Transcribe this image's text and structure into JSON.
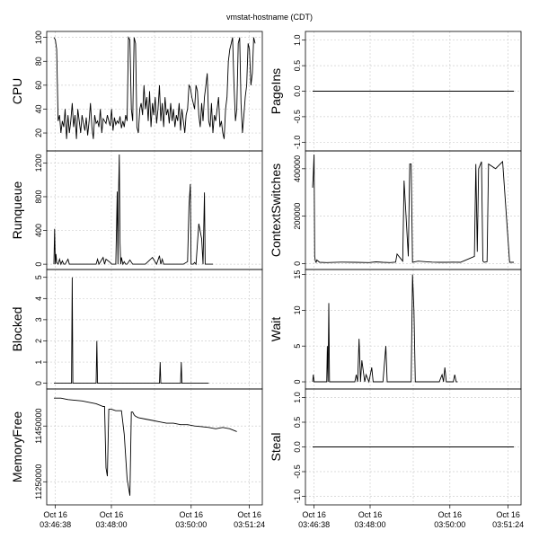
{
  "page_title": "vmstat-hostname (CDT)",
  "x_tick_labels": [
    {
      "day": "Oct 16",
      "time": "03:46:38"
    },
    {
      "day": "Oct 16",
      "time": "03:48:00"
    },
    {
      "day": "Oct 16",
      "time": "03:50:00"
    },
    {
      "day": "Oct 16",
      "time": "03:51:24"
    }
  ],
  "chart_data": [
    {
      "type": "line",
      "ylabel": "CPU",
      "ylim": [
        8,
        102
      ],
      "yticks": [
        20,
        40,
        60,
        80,
        100
      ],
      "grid": true,
      "x": [
        0,
        2,
        4,
        6,
        8,
        10,
        12,
        14,
        16,
        18,
        20,
        22,
        24,
        26,
        28,
        30,
        32,
        34,
        36,
        38,
        40,
        42,
        44,
        46,
        48,
        50,
        52,
        54,
        56,
        58,
        60,
        62,
        64,
        66,
        68,
        70,
        72,
        74,
        76,
        78,
        80,
        82,
        84,
        86,
        88,
        90,
        92,
        94,
        96,
        98,
        100,
        102,
        104,
        106,
        108,
        110,
        112,
        114,
        116,
        118,
        120,
        122,
        124,
        126,
        128,
        130,
        132,
        134,
        136,
        138,
        140,
        142,
        144,
        146,
        148,
        150,
        152,
        154,
        156,
        158,
        160,
        162,
        164,
        166,
        168,
        170,
        172,
        174,
        176,
        178,
        180,
        182,
        184,
        186,
        188,
        190,
        192,
        194,
        196,
        198,
        200,
        202,
        204,
        206,
        208,
        210,
        212,
        214,
        216,
        218,
        220,
        222,
        224,
        226,
        228,
        230,
        232,
        234,
        236,
        238,
        240,
        242,
        244,
        246,
        248,
        250,
        252,
        254,
        256,
        258,
        260,
        262,
        264,
        266,
        268,
        270,
        272,
        274,
        276,
        278,
        280,
        282,
        284,
        286
      ],
      "values": [
        100,
        98,
        90,
        30,
        35,
        20,
        30,
        25,
        40,
        15,
        35,
        20,
        30,
        45,
        25,
        35,
        15,
        40,
        30,
        20,
        35,
        28,
        22,
        33,
        18,
        30,
        45,
        25,
        15,
        35,
        28,
        30,
        25,
        40,
        20,
        32,
        30,
        28,
        35,
        30,
        26,
        40,
        22,
        33,
        27,
        30,
        28,
        34,
        24,
        30,
        25,
        35,
        30,
        100,
        98,
        40,
        30,
        100,
        95,
        25,
        20,
        40,
        45,
        35,
        60,
        40,
        50,
        30,
        55,
        25,
        45,
        35,
        50,
        28,
        40,
        60,
        30,
        45,
        25,
        50,
        35,
        40,
        28,
        45,
        30,
        40,
        25,
        35,
        30,
        45,
        22,
        40,
        30,
        20,
        35,
        40,
        60,
        58,
        50,
        45,
        40,
        60,
        55,
        35,
        25,
        45,
        30,
        50,
        60,
        70,
        30,
        25,
        45,
        20,
        35,
        30,
        40,
        50,
        25,
        30,
        20,
        15,
        40,
        50,
        80,
        90,
        95,
        100,
        60,
        30,
        40,
        95,
        100,
        45,
        20,
        35,
        50,
        60,
        95,
        90,
        60,
        70,
        100,
        95
      ],
      "labels": [
        "",
        "",
        "",
        "",
        "",
        ""
      ]
    },
    {
      "type": "line",
      "ylabel": "PageIns",
      "ylim": [
        -1.1,
        1.1
      ],
      "yticks": [
        -1.0,
        -0.5,
        0.0,
        0.5,
        1.0
      ],
      "grid": true,
      "x": [
        0,
        286
      ],
      "values": [
        0,
        0
      ]
    },
    {
      "type": "line",
      "ylabel": "Runqueue",
      "ylim": [
        -20,
        1300
      ],
      "yticks": [
        0,
        400,
        800,
        1200
      ],
      "grid": true,
      "x": [
        0,
        1,
        2,
        3,
        4,
        6,
        8,
        10,
        12,
        14,
        16,
        20,
        22,
        24,
        30,
        40,
        50,
        60,
        62,
        64,
        70,
        72,
        74,
        80,
        82,
        84,
        88,
        90,
        91,
        92,
        93,
        94,
        95,
        96,
        98,
        100,
        102,
        104,
        108,
        112,
        116,
        120,
        124,
        130,
        140,
        146,
        150,
        152,
        154,
        156,
        160,
        164,
        170,
        176,
        180,
        184,
        190,
        192,
        194,
        195,
        196,
        197,
        198,
        200,
        202,
        206,
        210,
        212,
        214,
        215,
        216,
        218,
        222,
        226
      ],
      "values": [
        0,
        420,
        0,
        120,
        20,
        0,
        60,
        0,
        40,
        0,
        0,
        60,
        0,
        0,
        0,
        0,
        0,
        0,
        60,
        0,
        80,
        0,
        60,
        20,
        0,
        0,
        0,
        860,
        0,
        900,
        1300,
        250,
        0,
        80,
        0,
        30,
        0,
        0,
        50,
        0,
        0,
        0,
        0,
        0,
        80,
        0,
        100,
        0,
        60,
        0,
        0,
        0,
        0,
        0,
        0,
        0,
        30,
        700,
        950,
        0,
        0,
        0,
        0,
        20,
        0,
        480,
        300,
        0,
        850,
        0,
        0,
        0,
        0,
        0
      ],
      "labels": []
    },
    {
      "type": "line",
      "ylabel": "ContextSwitches",
      "ylim": [
        -10000,
        460000
      ],
      "yticks": [
        0,
        200000,
        400000
      ],
      "grid": true,
      "x": [
        0,
        1,
        2,
        3,
        4,
        5,
        6,
        10,
        20,
        40,
        60,
        80,
        90,
        100,
        110,
        118,
        120,
        128,
        130,
        136,
        138,
        140,
        142,
        150,
        160,
        170,
        180,
        190,
        200,
        210,
        230,
        232,
        234,
        236,
        240,
        242,
        244,
        248,
        250,
        260,
        270,
        280,
        286
      ],
      "values": [
        320000,
        380000,
        460000,
        30000,
        10000,
        5000,
        15000,
        5000,
        4000,
        6000,
        5000,
        4000,
        7000,
        5000,
        4000,
        6000,
        40000,
        10000,
        350000,
        30000,
        420000,
        420000,
        5000,
        10000,
        8000,
        6000,
        5000,
        5000,
        6000,
        5000,
        30000,
        420000,
        50000,
        400000,
        430000,
        10000,
        5000,
        8000,
        420000,
        400000,
        430000,
        5000,
        5000
      ]
    },
    {
      "type": "line",
      "ylabel": "Blocked",
      "ylim": [
        -0.1,
        5.2
      ],
      "yticks": [
        0,
        1,
        2,
        3,
        4,
        5
      ],
      "grid": true,
      "x": [
        0,
        25,
        26,
        27,
        60,
        61,
        62,
        150,
        151,
        152,
        180,
        181,
        182,
        220
      ],
      "values": [
        0,
        0,
        5,
        0,
        0,
        2,
        0,
        0,
        1,
        0,
        0,
        1,
        0,
        0
      ]
    },
    {
      "type": "line",
      "ylabel": "Wait",
      "ylim": [
        -0.5,
        15.2
      ],
      "yticks": [
        0,
        5,
        10,
        15
      ],
      "grid": true,
      "x": [
        0,
        1,
        2,
        3,
        20,
        21,
        22,
        23,
        24,
        25,
        60,
        62,
        64,
        66,
        68,
        70,
        74,
        76,
        80,
        84,
        86,
        100,
        104,
        106,
        120,
        140,
        142,
        144,
        146,
        148,
        150,
        180,
        184,
        186,
        188,
        190,
        200,
        202,
        204,
        206
      ],
      "values": [
        0,
        1,
        0,
        0,
        0,
        5,
        0,
        11,
        0,
        0,
        0,
        1,
        0,
        6,
        0,
        3,
        0,
        1,
        0,
        2,
        0,
        0,
        5,
        0,
        0,
        0,
        15,
        10,
        0,
        0,
        0,
        0,
        1,
        0,
        2,
        0,
        0,
        1,
        0,
        0
      ]
    },
    {
      "type": "line",
      "ylabel": "MemoryFree",
      "ylim": [
        11180000,
        11570000
      ],
      "yticks": [
        11250000,
        11450000
      ],
      "grid": true,
      "x": [
        0,
        10,
        20,
        40,
        60,
        70,
        72,
        74,
        76,
        78,
        80,
        82,
        88,
        92,
        96,
        100,
        104,
        108,
        110,
        112,
        114,
        116,
        120,
        130,
        140,
        150,
        160,
        170,
        180,
        190,
        200,
        210,
        220,
        230,
        240,
        250,
        260
      ],
      "values": [
        11550000,
        11550000,
        11545000,
        11540000,
        11530000,
        11520000,
        11520000,
        11300000,
        11270000,
        11510000,
        11510000,
        11510000,
        11505000,
        11505000,
        11505000,
        11420000,
        11260000,
        11200000,
        11500000,
        11500000,
        11490000,
        11485000,
        11480000,
        11475000,
        11470000,
        11465000,
        11460000,
        11460000,
        11455000,
        11455000,
        11450000,
        11448000,
        11445000,
        11440000,
        11445000,
        11440000,
        11430000
      ]
    },
    {
      "type": "line",
      "ylabel": "Steal",
      "ylim": [
        -1.1,
        1.1
      ],
      "yticks": [
        -1.0,
        -0.5,
        0.0,
        0.5,
        1.0
      ],
      "grid": true,
      "x": [
        0,
        286
      ],
      "values": [
        0,
        0
      ]
    }
  ]
}
